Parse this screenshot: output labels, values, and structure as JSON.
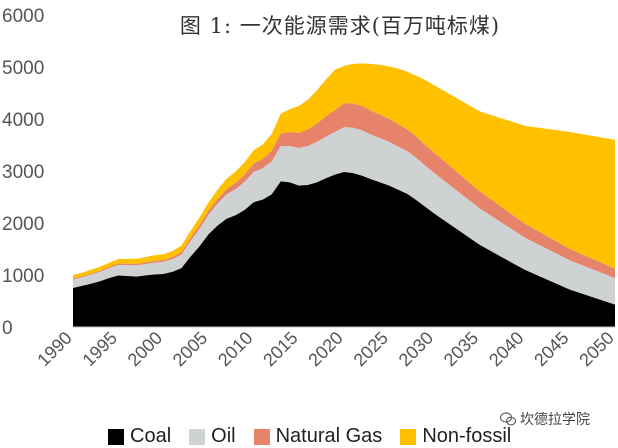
{
  "title": "图 1: 一次能源需求(百万吨标煤)",
  "watermark": "坎德拉学院",
  "colors": {
    "coal": "#000000",
    "oil": "#cfd2d3",
    "gas": "#e8836b",
    "nonfossil": "#ffc000",
    "axis_text": "#555555"
  },
  "chart_data": {
    "type": "area",
    "stacked": true,
    "title": "图 1: 一次能源需求(百万吨标煤)",
    "xlabel": "",
    "ylabel": "",
    "xlim": [
      1990,
      2050
    ],
    "ylim": [
      0,
      6000
    ],
    "grid": false,
    "legend_position": "bottom",
    "x": [
      1990,
      1991,
      1992,
      1993,
      1994,
      1995,
      1996,
      1997,
      1998,
      1999,
      2000,
      2001,
      2002,
      2003,
      2004,
      2005,
      2006,
      2007,
      2008,
      2009,
      2010,
      2011,
      2012,
      2013,
      2014,
      2015,
      2016,
      2017,
      2018,
      2019,
      2020,
      2021,
      2022,
      2023,
      2024,
      2025,
      2026,
      2027,
      2028,
      2029,
      2030,
      2035,
      2040,
      2045,
      2050
    ],
    "x_ticks": [
      "1990",
      "1995",
      "2000",
      "2005",
      "2010",
      "2015",
      "2020",
      "2025",
      "2030",
      "2035",
      "2040",
      "2045",
      "2050"
    ],
    "y_ticks": [
      "0",
      "1000",
      "2000",
      "3000",
      "4000",
      "5000",
      "6000"
    ],
    "series": [
      {
        "name": "Coal",
        "values": [
          750,
          790,
          830,
          880,
          940,
          990,
          980,
          970,
          990,
          1010,
          1020,
          1060,
          1130,
          1350,
          1550,
          1780,
          1950,
          2080,
          2150,
          2250,
          2400,
          2450,
          2550,
          2800,
          2780,
          2720,
          2730,
          2780,
          2860,
          2930,
          2980,
          2960,
          2910,
          2840,
          2780,
          2720,
          2640,
          2560,
          2440,
          2310,
          2180,
          1580,
          1100,
          720,
          430
        ]
      },
      {
        "name": "Oil",
        "values": [
          160,
          165,
          175,
          180,
          190,
          200,
          210,
          215,
          220,
          225,
          230,
          240,
          260,
          300,
          340,
          380,
          420,
          470,
          500,
          540,
          580,
          600,
          630,
          680,
          700,
          720,
          750,
          780,
          800,
          820,
          860,
          870,
          870,
          860,
          850,
          840,
          830,
          820,
          810,
          790,
          780,
          700,
          620,
          560,
          510
        ]
      },
      {
        "name": "Natural Gas",
        "values": [
          20,
          20,
          20,
          22,
          22,
          25,
          25,
          27,
          30,
          33,
          35,
          40,
          45,
          55,
          65,
          75,
          90,
          100,
          120,
          140,
          160,
          180,
          210,
          240,
          270,
          290,
          320,
          350,
          390,
          420,
          460,
          470,
          470,
          460,
          450,
          440,
          430,
          420,
          410,
          400,
          390,
          330,
          270,
          220,
          180
        ]
      },
      {
        "name": "Non-fossil",
        "values": [
          70,
          70,
          75,
          80,
          85,
          90,
          95,
          100,
          105,
          110,
          115,
          120,
          130,
          140,
          150,
          160,
          180,
          200,
          220,
          240,
          260,
          280,
          320,
          380,
          440,
          520,
          570,
          640,
          710,
          780,
          720,
          760,
          820,
          900,
          960,
          1010,
          1070,
          1110,
          1170,
          1250,
          1300,
          1540,
          1880,
          2250,
          2480
        ]
      }
    ]
  }
}
